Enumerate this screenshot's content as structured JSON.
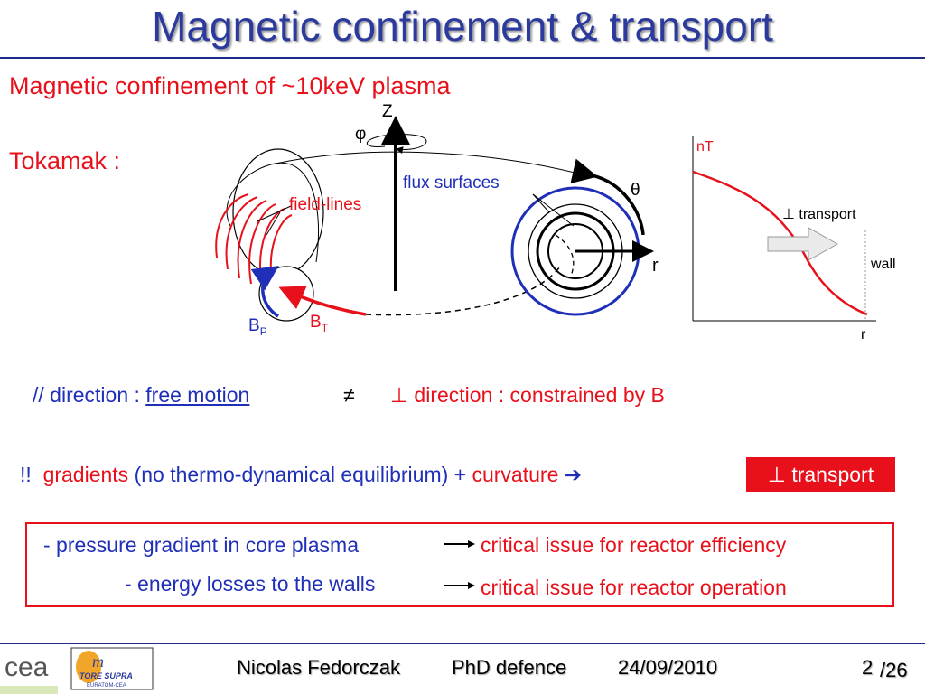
{
  "slide": {
    "title": "Magnetic confinement  & transport",
    "subtitle": "Magnetic confinement of ~10keV plasma",
    "tokamak_label": "Tokamak :"
  },
  "tokamak_diagram": {
    "z_label": "Z",
    "phi_label": "φ",
    "theta_label": "θ",
    "r_label": "r",
    "flux_surfaces_label": "flux surfaces",
    "field_lines_label": "field-lines",
    "bp_label": "B",
    "bp_sub": "P",
    "bt_label": "B",
    "bt_sub": "T"
  },
  "profile_plot": {
    "y_label": "nT",
    "x_label": "r",
    "transport_label": "⊥ transport",
    "wall_label": "wall"
  },
  "direction_line": {
    "parallel_prefix": "// direction : ",
    "parallel_link": "free motion",
    "not_equal": "≠",
    "perp_text": "⊥ direction : constrained by B"
  },
  "gradient_line": {
    "exclaim": "!!",
    "gradients": "gradients",
    "paren": " (no thermo-dynamical equilibrium) + ",
    "curvature": "curvature",
    "arrow": "➔",
    "badge": "⊥ transport"
  },
  "issues": [
    {
      "cause": "- pressure gradient in core plasma",
      "effect": "critical issue for reactor efficiency"
    },
    {
      "cause": "- energy losses to the walls",
      "effect": "critical issue for reactor operation"
    }
  ],
  "footer": {
    "author": "Nicolas Fedorczak",
    "event": "PhD defence",
    "date": "24/09/2010",
    "page": "2",
    "total": "/26",
    "logo_cea": "cea",
    "logo_tore_supra": "TORE SUPRA",
    "logo_euratom": "EURATOM-CEA"
  },
  "colors": {
    "title_blue": "#2b3a9c",
    "red": "#e8101b",
    "blue": "#1f2fb8"
  }
}
